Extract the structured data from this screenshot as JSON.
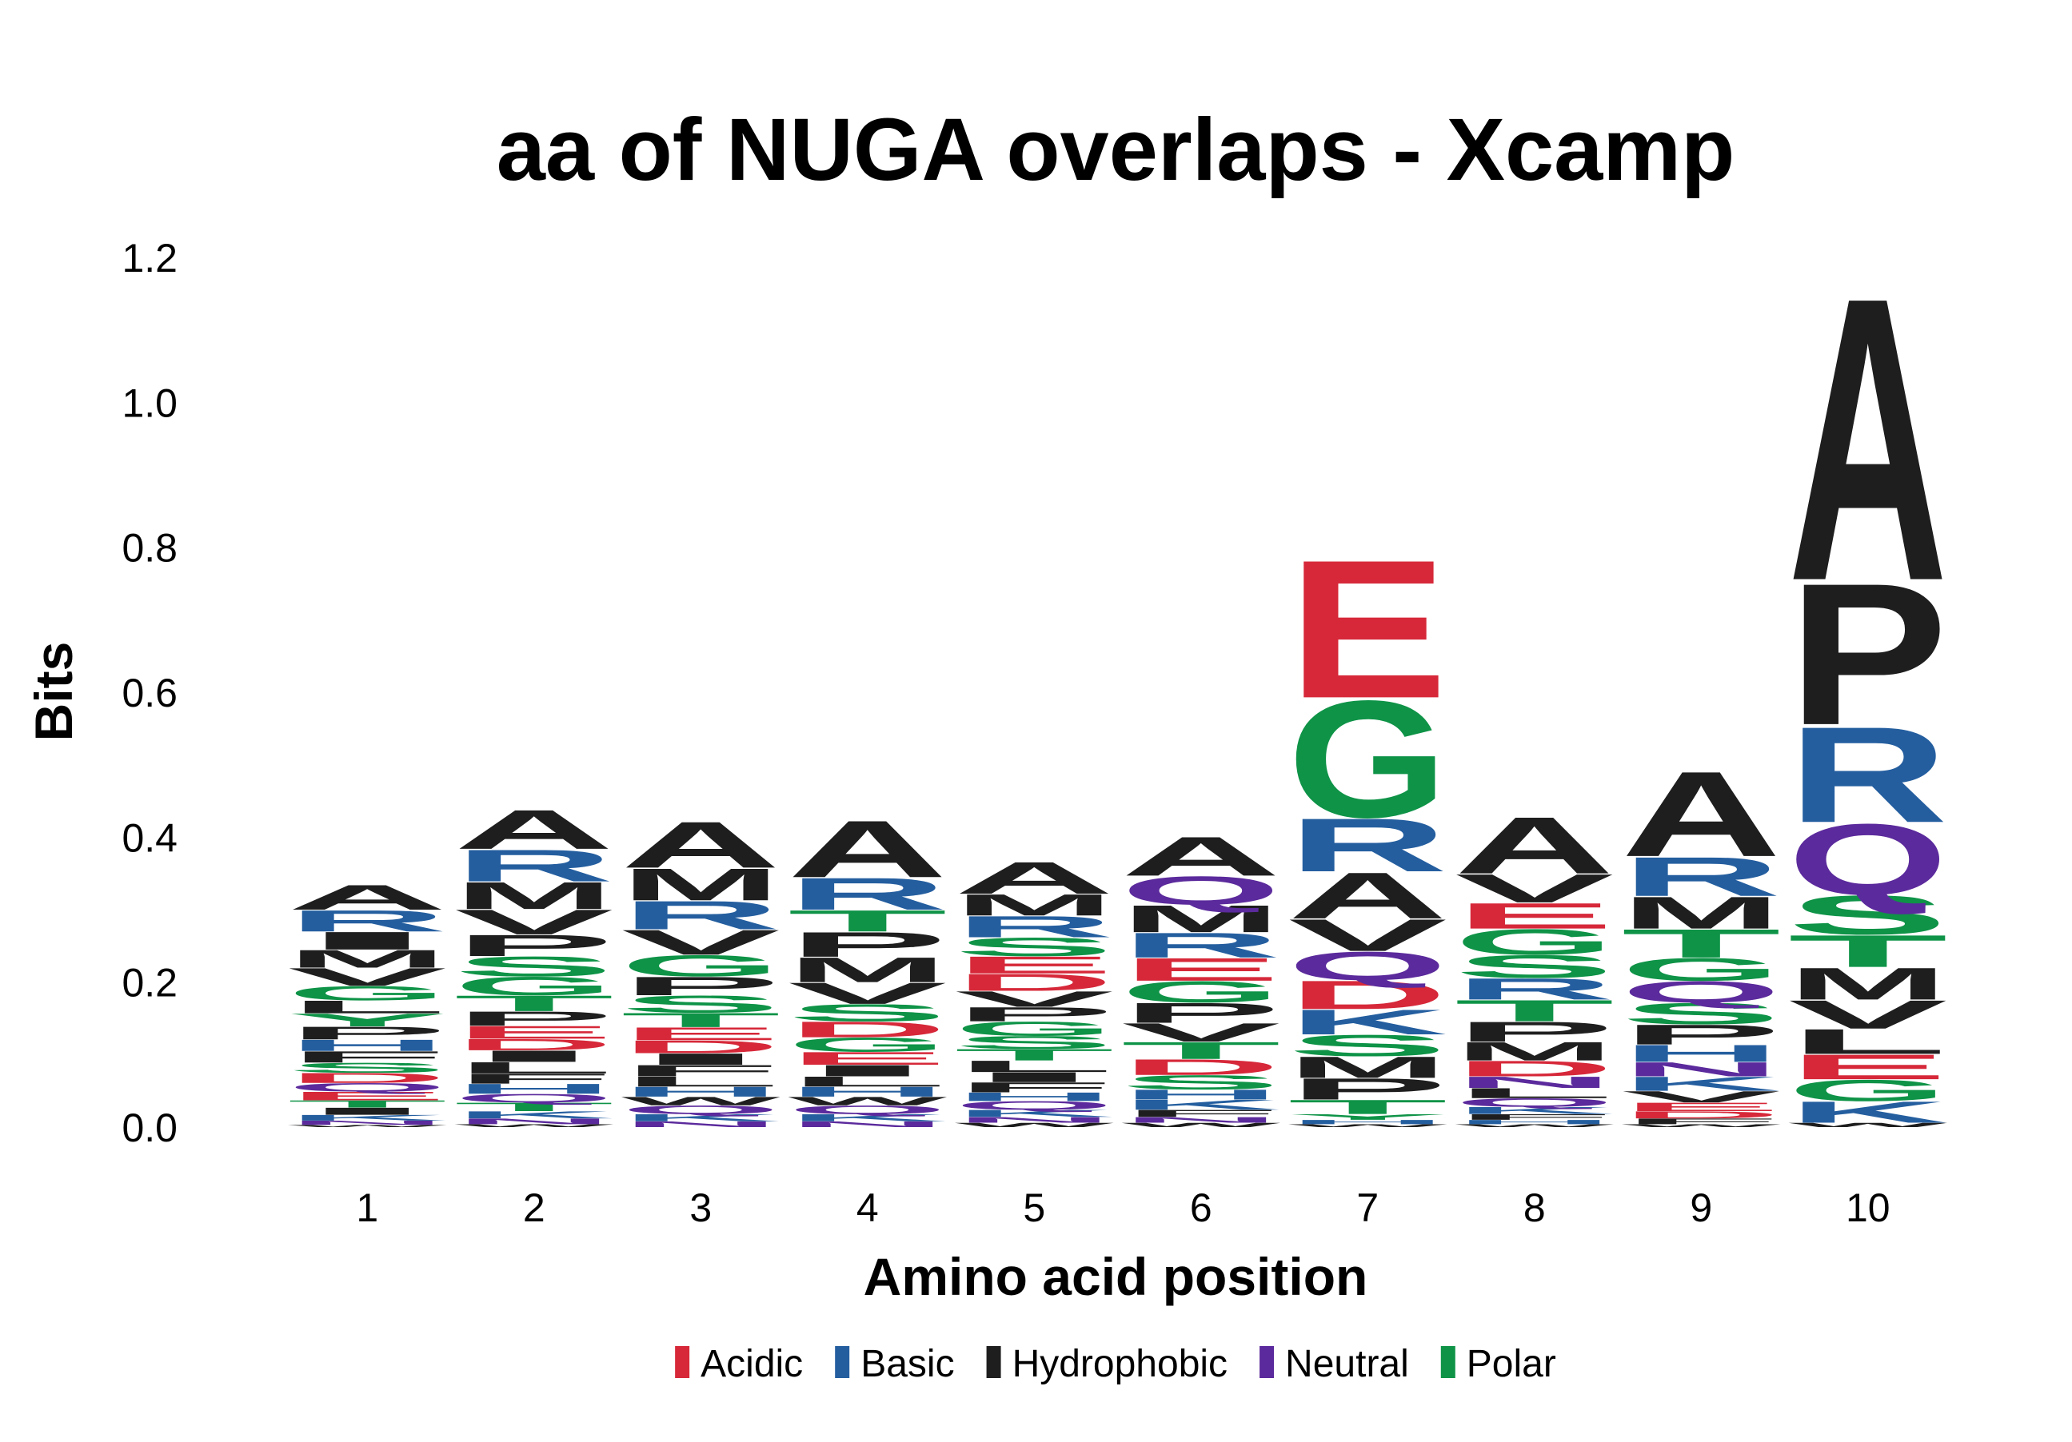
{
  "chart_data": {
    "type": "sequence-logo",
    "title": "aa of NUGA overlaps - Xcamp",
    "xlabel": "Amino acid position",
    "ylabel": "Bits",
    "ylim": [
      0,
      1.2
    ],
    "yticks": [
      "0.0",
      "0.2",
      "0.4",
      "0.6",
      "0.8",
      "1.0",
      "1.2"
    ],
    "ytick_values": [
      0,
      0.2,
      0.4,
      0.6,
      0.8,
      1.0,
      1.2
    ],
    "positions": [
      "1",
      "2",
      "3",
      "4",
      "5",
      "6",
      "7",
      "8",
      "9",
      "10"
    ],
    "legend_position": "bottom",
    "groups": [
      {
        "name": "Acidic",
        "color": "#d62839"
      },
      {
        "name": "Basic",
        "color": "#245e9f"
      },
      {
        "name": "Hydrophobic",
        "color": "#1e1e1e"
      },
      {
        "name": "Neutral",
        "color": "#5b2a9c"
      },
      {
        "name": "Polar",
        "color": "#0e9347"
      }
    ],
    "residue_groups": {
      "A": "Hydrophobic",
      "V": "Hydrophobic",
      "L": "Hydrophobic",
      "I": "Hydrophobic",
      "P": "Hydrophobic",
      "M": "Hydrophobic",
      "W": "Hydrophobic",
      "F": "Hydrophobic",
      "D": "Acidic",
      "E": "Acidic",
      "K": "Basic",
      "R": "Basic",
      "H": "Basic",
      "Q": "Neutral",
      "N": "Neutral",
      "S": "Polar",
      "T": "Polar",
      "G": "Polar",
      "Y": "Polar",
      "C": "Polar"
    },
    "stacks": [
      {
        "position": "1",
        "letters": [
          {
            "aa": "W",
            "bits": 0.003
          },
          {
            "aa": "N",
            "bits": 0.006
          },
          {
            "aa": "K",
            "bits": 0.008
          },
          {
            "aa": "I",
            "bits": 0.01
          },
          {
            "aa": "T",
            "bits": 0.01
          },
          {
            "aa": "E",
            "bits": 0.012
          },
          {
            "aa": "Q",
            "bits": 0.012
          },
          {
            "aa": "D",
            "bits": 0.014
          },
          {
            "aa": "S",
            "bits": 0.014
          },
          {
            "aa": "F",
            "bits": 0.016
          },
          {
            "aa": "H",
            "bits": 0.016
          },
          {
            "aa": "P",
            "bits": 0.018
          },
          {
            "aa": "Y",
            "bits": 0.018
          },
          {
            "aa": "L",
            "bits": 0.018
          },
          {
            "aa": "G",
            "bits": 0.02
          },
          {
            "aa": "V",
            "bits": 0.025
          },
          {
            "aa": "M",
            "bits": 0.025
          },
          {
            "aa": "I",
            "bits": 0.025
          },
          {
            "aa": "R",
            "bits": 0.03
          },
          {
            "aa": "A",
            "bits": 0.035
          }
        ]
      },
      {
        "position": "2",
        "letters": [
          {
            "aa": "W",
            "bits": 0.004
          },
          {
            "aa": "N",
            "bits": 0.008
          },
          {
            "aa": "K",
            "bits": 0.01
          },
          {
            "aa": "T",
            "bits": 0.012
          },
          {
            "aa": "Q",
            "bits": 0.012
          },
          {
            "aa": "H",
            "bits": 0.014
          },
          {
            "aa": "F",
            "bits": 0.014
          },
          {
            "aa": "L",
            "bits": 0.016
          },
          {
            "aa": "I",
            "bits": 0.016
          },
          {
            "aa": "D",
            "bits": 0.016
          },
          {
            "aa": "E",
            "bits": 0.018
          },
          {
            "aa": "P",
            "bits": 0.02
          },
          {
            "aa": "T",
            "bits": 0.022
          },
          {
            "aa": "G",
            "bits": 0.026
          },
          {
            "aa": "S",
            "bits": 0.028
          },
          {
            "aa": "P",
            "bits": 0.03
          },
          {
            "aa": "V",
            "bits": 0.035
          },
          {
            "aa": "M",
            "bits": 0.038
          },
          {
            "aa": "R",
            "bits": 0.045
          },
          {
            "aa": "A",
            "bits": 0.055
          }
        ]
      },
      {
        "position": "3",
        "letters": [
          {
            "aa": "N",
            "bits": 0.008
          },
          {
            "aa": "K",
            "bits": 0.01
          },
          {
            "aa": "Q",
            "bits": 0.012
          },
          {
            "aa": "W",
            "bits": 0.012
          },
          {
            "aa": "H",
            "bits": 0.014
          },
          {
            "aa": "L",
            "bits": 0.014
          },
          {
            "aa": "F",
            "bits": 0.016
          },
          {
            "aa": "I",
            "bits": 0.016
          },
          {
            "aa": "D",
            "bits": 0.018
          },
          {
            "aa": "E",
            "bits": 0.018
          },
          {
            "aa": "T",
            "bits": 0.02
          },
          {
            "aa": "S",
            "bits": 0.024
          },
          {
            "aa": "P",
            "bits": 0.026
          },
          {
            "aa": "G",
            "bits": 0.03
          },
          {
            "aa": "V",
            "bits": 0.035
          },
          {
            "aa": "R",
            "bits": 0.04
          },
          {
            "aa": "M",
            "bits": 0.045
          },
          {
            "aa": "A",
            "bits": 0.065
          }
        ]
      },
      {
        "position": "4",
        "letters": [
          {
            "aa": "N",
            "bits": 0.008
          },
          {
            "aa": "K",
            "bits": 0.01
          },
          {
            "aa": "Q",
            "bits": 0.012
          },
          {
            "aa": "W",
            "bits": 0.012
          },
          {
            "aa": "H",
            "bits": 0.014
          },
          {
            "aa": "L",
            "bits": 0.014
          },
          {
            "aa": "I",
            "bits": 0.016
          },
          {
            "aa": "E",
            "bits": 0.018
          },
          {
            "aa": "G",
            "bits": 0.02
          },
          {
            "aa": "D",
            "bits": 0.022
          },
          {
            "aa": "S",
            "bits": 0.024
          },
          {
            "aa": "V",
            "bits": 0.03
          },
          {
            "aa": "M",
            "bits": 0.035
          },
          {
            "aa": "P",
            "bits": 0.035
          },
          {
            "aa": "T",
            "bits": 0.03
          },
          {
            "aa": "R",
            "bits": 0.045
          },
          {
            "aa": "A",
            "bits": 0.08
          }
        ]
      },
      {
        "position": "5",
        "letters": [
          {
            "aa": "W",
            "bits": 0.006
          },
          {
            "aa": "N",
            "bits": 0.008
          },
          {
            "aa": "K",
            "bits": 0.01
          },
          {
            "aa": "Q",
            "bits": 0.012
          },
          {
            "aa": "H",
            "bits": 0.012
          },
          {
            "aa": "F",
            "bits": 0.014
          },
          {
            "aa": "I",
            "bits": 0.014
          },
          {
            "aa": "L",
            "bits": 0.016
          },
          {
            "aa": "T",
            "bits": 0.016
          },
          {
            "aa": "S",
            "bits": 0.018
          },
          {
            "aa": "G",
            "bits": 0.02
          },
          {
            "aa": "P",
            "bits": 0.02
          },
          {
            "aa": "V",
            "bits": 0.022
          },
          {
            "aa": "D",
            "bits": 0.024
          },
          {
            "aa": "E",
            "bits": 0.024
          },
          {
            "aa": "S",
            "bits": 0.026
          },
          {
            "aa": "R",
            "bits": 0.03
          },
          {
            "aa": "M",
            "bits": 0.03
          },
          {
            "aa": "A",
            "bits": 0.045
          }
        ]
      },
      {
        "position": "6",
        "letters": [
          {
            "aa": "W",
            "bits": 0.006
          },
          {
            "aa": "N",
            "bits": 0.008
          },
          {
            "aa": "F",
            "bits": 0.01
          },
          {
            "aa": "K",
            "bits": 0.014
          },
          {
            "aa": "H",
            "bits": 0.014
          },
          {
            "aa": "S",
            "bits": 0.02
          },
          {
            "aa": "D",
            "bits": 0.022
          },
          {
            "aa": "T",
            "bits": 0.024
          },
          {
            "aa": "V",
            "bits": 0.026
          },
          {
            "aa": "P",
            "bits": 0.028
          },
          {
            "aa": "G",
            "bits": 0.03
          },
          {
            "aa": "E",
            "bits": 0.032
          },
          {
            "aa": "R",
            "bits": 0.035
          },
          {
            "aa": "M",
            "bits": 0.038
          },
          {
            "aa": "Q",
            "bits": 0.04
          },
          {
            "aa": "A",
            "bits": 0.055
          }
        ]
      },
      {
        "position": "7",
        "letters": [
          {
            "aa": "W",
            "bits": 0.004
          },
          {
            "aa": "H",
            "bits": 0.006
          },
          {
            "aa": "Y",
            "bits": 0.008
          },
          {
            "aa": "T",
            "bits": 0.02
          },
          {
            "aa": "P",
            "bits": 0.03
          },
          {
            "aa": "M",
            "bits": 0.03
          },
          {
            "aa": "S",
            "bits": 0.03
          },
          {
            "aa": "K",
            "bits": 0.035
          },
          {
            "aa": "D",
            "bits": 0.04
          },
          {
            "aa": "Q",
            "bits": 0.04
          },
          {
            "aa": "V",
            "bits": 0.045
          },
          {
            "aa": "A",
            "bits": 0.065
          },
          {
            "aa": "R",
            "bits": 0.075
          },
          {
            "aa": "G",
            "bits": 0.165
          },
          {
            "aa": "E",
            "bits": 0.195
          }
        ]
      },
      {
        "position": "8",
        "letters": [
          {
            "aa": "W",
            "bits": 0.004
          },
          {
            "aa": "H",
            "bits": 0.006
          },
          {
            "aa": "F",
            "bits": 0.008
          },
          {
            "aa": "K",
            "bits": 0.01
          },
          {
            "aa": "Q",
            "bits": 0.012
          },
          {
            "aa": "L",
            "bits": 0.014
          },
          {
            "aa": "N",
            "bits": 0.016
          },
          {
            "aa": "D",
            "bits": 0.022
          },
          {
            "aa": "M",
            "bits": 0.026
          },
          {
            "aa": "P",
            "bits": 0.028
          },
          {
            "aa": "T",
            "bits": 0.03
          },
          {
            "aa": "R",
            "bits": 0.03
          },
          {
            "aa": "S",
            "bits": 0.032
          },
          {
            "aa": "G",
            "bits": 0.036
          },
          {
            "aa": "E",
            "bits": 0.036
          },
          {
            "aa": "V",
            "bits": 0.04
          },
          {
            "aa": "A",
            "bits": 0.08
          }
        ]
      },
      {
        "position": "9",
        "letters": [
          {
            "aa": "W",
            "bits": 0.004
          },
          {
            "aa": "F",
            "bits": 0.008
          },
          {
            "aa": "D",
            "bits": 0.01
          },
          {
            "aa": "E",
            "bits": 0.012
          },
          {
            "aa": "V",
            "bits": 0.016
          },
          {
            "aa": "K",
            "bits": 0.02
          },
          {
            "aa": "N",
            "bits": 0.02
          },
          {
            "aa": "H",
            "bits": 0.024
          },
          {
            "aa": "P",
            "bits": 0.028
          },
          {
            "aa": "S",
            "bits": 0.03
          },
          {
            "aa": "Q",
            "bits": 0.03
          },
          {
            "aa": "G",
            "bits": 0.032
          },
          {
            "aa": "T",
            "bits": 0.04
          },
          {
            "aa": "M",
            "bits": 0.045
          },
          {
            "aa": "R",
            "bits": 0.055
          },
          {
            "aa": "A",
            "bits": 0.12
          }
        ]
      },
      {
        "position": "10",
        "letters": [
          {
            "aa": "W",
            "bits": 0.006
          },
          {
            "aa": "K",
            "bits": 0.03
          },
          {
            "aa": "G",
            "bits": 0.03
          },
          {
            "aa": "E",
            "bits": 0.035
          },
          {
            "aa": "L",
            "bits": 0.035
          },
          {
            "aa": "V",
            "bits": 0.04
          },
          {
            "aa": "M",
            "bits": 0.045
          },
          {
            "aa": "T",
            "bits": 0.045
          },
          {
            "aa": "S",
            "bits": 0.055
          },
          {
            "aa": "Q",
            "bits": 0.1
          },
          {
            "aa": "R",
            "bits": 0.135
          },
          {
            "aa": "P",
            "bits": 0.2
          },
          {
            "aa": "A",
            "bits": 0.4
          }
        ]
      }
    ]
  }
}
